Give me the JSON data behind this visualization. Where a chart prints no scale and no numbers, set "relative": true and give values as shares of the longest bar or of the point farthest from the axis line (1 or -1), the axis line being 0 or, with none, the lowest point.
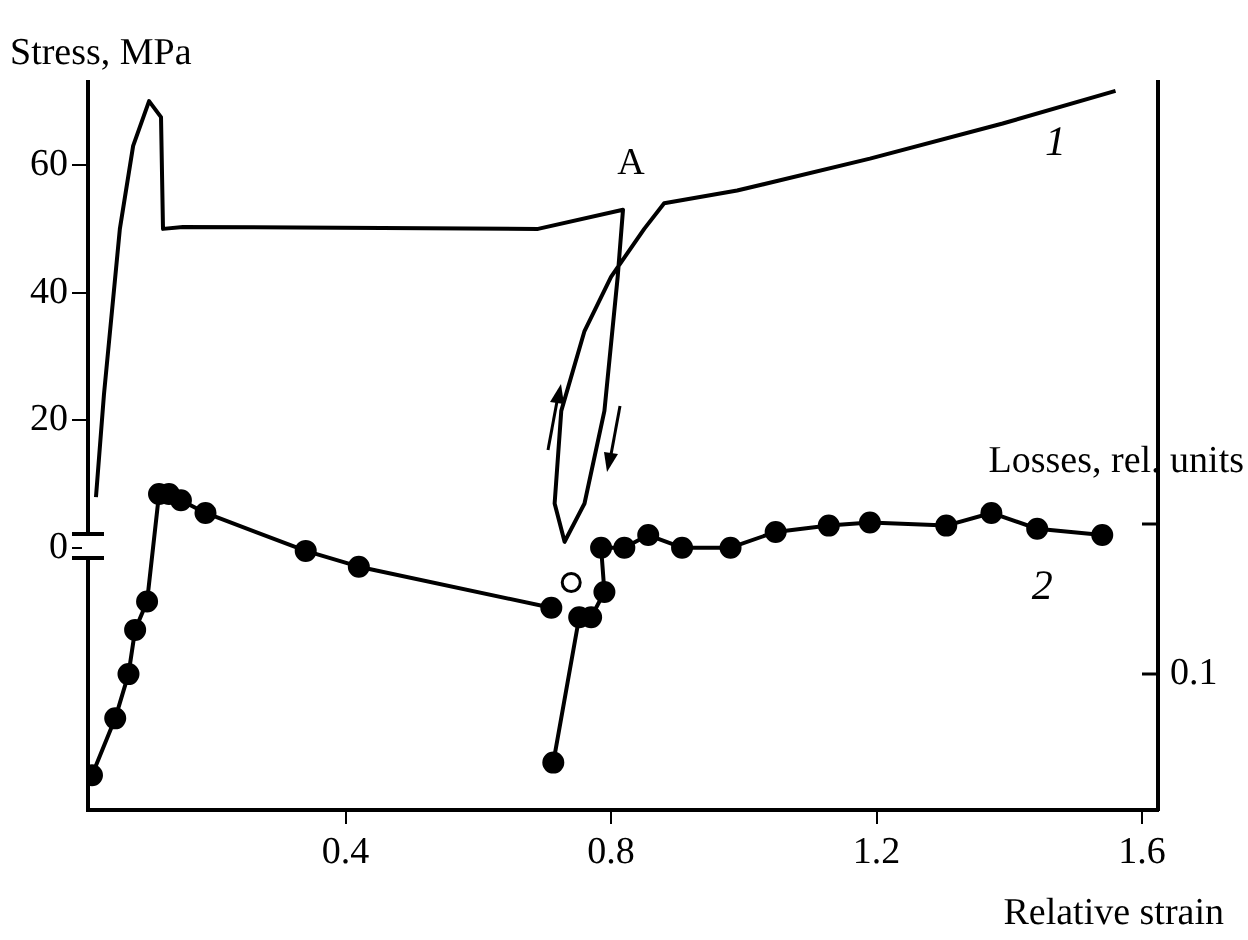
{
  "chart_data": [
    {
      "type": "line",
      "xlabel": "Relative strain",
      "ylabel": "Stress, MPa",
      "xlim": [
        0.012,
        1.624
      ],
      "xticks": [
        0.4,
        0.8,
        1.2,
        1.6
      ],
      "ylim": [
        -41,
        73
      ],
      "yticks": [
        0,
        20,
        40,
        60
      ],
      "annotations": [
        {
          "text": "A",
          "x": 0.818,
          "y": 53
        }
      ],
      "series": [
        {
          "name": "1",
          "color": "#000000",
          "marker": "none",
          "x": [
            0.024,
            0.036,
            0.06,
            0.08,
            0.104,
            0.122,
            0.125,
            0.155,
            0.69,
            0.818,
            0.81,
            0.79,
            0.76,
            0.73,
            0.715,
            0.725,
            0.76,
            0.8,
            0.85,
            0.88,
            0.99,
            1.19,
            1.39,
            1.56
          ],
          "values": [
            8,
            24,
            50,
            63,
            70,
            67.5,
            50,
            50.3,
            50,
            53,
            42.5,
            21.5,
            7,
            1,
            7,
            21.5,
            34,
            42.5,
            50,
            54,
            56,
            61,
            66.5,
            71.6
          ]
        }
      ]
    },
    {
      "type": "line",
      "y2label": "Losses, rel. units",
      "relative": true,
      "xlim": [
        0.012,
        1.624
      ],
      "annotations": [
        "0.1"
      ],
      "series": [
        {
          "name": "2",
          "axis": "y2",
          "color": "#000000",
          "marker": "circle",
          "x": [
            0.018,
            0.053,
            0.073,
            0.083,
            0.101,
            0.119,
            0.134,
            0.152,
            0.189,
            0.34,
            0.42,
            0.71,
            0.712,
            0.713,
            0.752,
            0.77,
            0.79,
            0.785,
            0.82,
            0.856,
            0.907,
            0.98,
            1.048,
            1.128,
            1.19,
            1.305,
            1.373,
            1.442,
            1.54
          ],
          "values": [
            0.11,
            0.29,
            0.43,
            0.57,
            0.66,
            1,
            1,
            0.98,
            0.94,
            0.82,
            0.77,
            0.64,
            null,
            0.15,
            0.61,
            0.61,
            0.69,
            0.83,
            0.83,
            0.87,
            0.83,
            0.83,
            0.88,
            0.9,
            0.91,
            0.9,
            0.94,
            0.89,
            0.87
          ]
        },
        {
          "type": "scatter",
          "axis": "y2",
          "color": "#000000",
          "marker": "circle",
          "x": [
            0.74
          ],
          "values": [
            0.72
          ]
        }
      ]
    }
  ]
}
